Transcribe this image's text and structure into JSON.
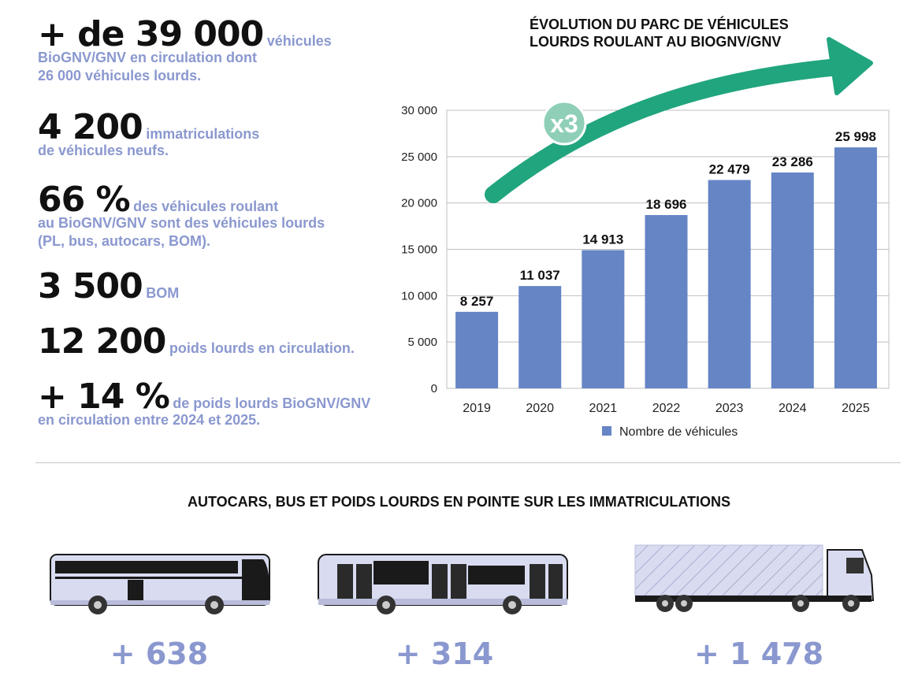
{
  "stats": [
    {
      "big": "+ de 39 000",
      "text_a": "véhicules",
      "text_b": "BioGNV/GNV en circulation dont",
      "text_c": "26 000 véhicules lourds."
    },
    {
      "big": "4 200",
      "text_a": "immatriculations",
      "text_b": "de véhicules neufs."
    },
    {
      "big": "66 %",
      "text_a": "des véhicules roulant",
      "text_b": "au BioGNV/GNV sont des véhicules lourds",
      "text_c": "(PL, bus, autocars, BOM)."
    },
    {
      "big": "3 500",
      "text_a": "BOM"
    },
    {
      "big": "12 200",
      "text_a": "poids lourds en circulation."
    },
    {
      "big": "+ 14 %",
      "text_a": "de poids lourds BioGNV/GNV",
      "text_b": "en circulation entre 2024 et 2025."
    }
  ],
  "chart_title": {
    "line1": "ÉVOLUTION DU PARC DE VÉHICULES",
    "line2": "LOURDS ROULANT AU BIOGNV/GNV"
  },
  "chart_badge": "x3",
  "chart_data": {
    "type": "bar",
    "categories": [
      "2019",
      "2020",
      "2021",
      "2022",
      "2023",
      "2024",
      "2025"
    ],
    "series": [
      {
        "name": "Nombre de véhicules",
        "values": [
          8257,
          11037,
          14913,
          18696,
          22479,
          23286,
          25998
        ]
      }
    ],
    "value_labels": [
      "8 257",
      "11 037",
      "14 913",
      "18 696",
      "22 479",
      "23 286",
      "25 998"
    ],
    "yticks": [
      0,
      5000,
      10000,
      15000,
      20000,
      25000,
      30000
    ],
    "ytick_labels": [
      "0",
      "5 000",
      "10 000",
      "15 000",
      "20 000",
      "25 000",
      "30 000"
    ],
    "ylim": [
      0,
      30000
    ],
    "grid": true,
    "legend": "bottom",
    "bar_color": "#6585c5",
    "arrow_color": "#21a57e"
  },
  "section_title": "AUTOCARS, BUS ET POIDS LOURDS EN POINTE SUR LES IMMATRICULATIONS",
  "vehicles": [
    {
      "icon": "coach-icon",
      "count": "+ 638"
    },
    {
      "icon": "bus-icon",
      "count": "+ 314"
    },
    {
      "icon": "truck-icon",
      "count": "+ 1 478"
    }
  ]
}
